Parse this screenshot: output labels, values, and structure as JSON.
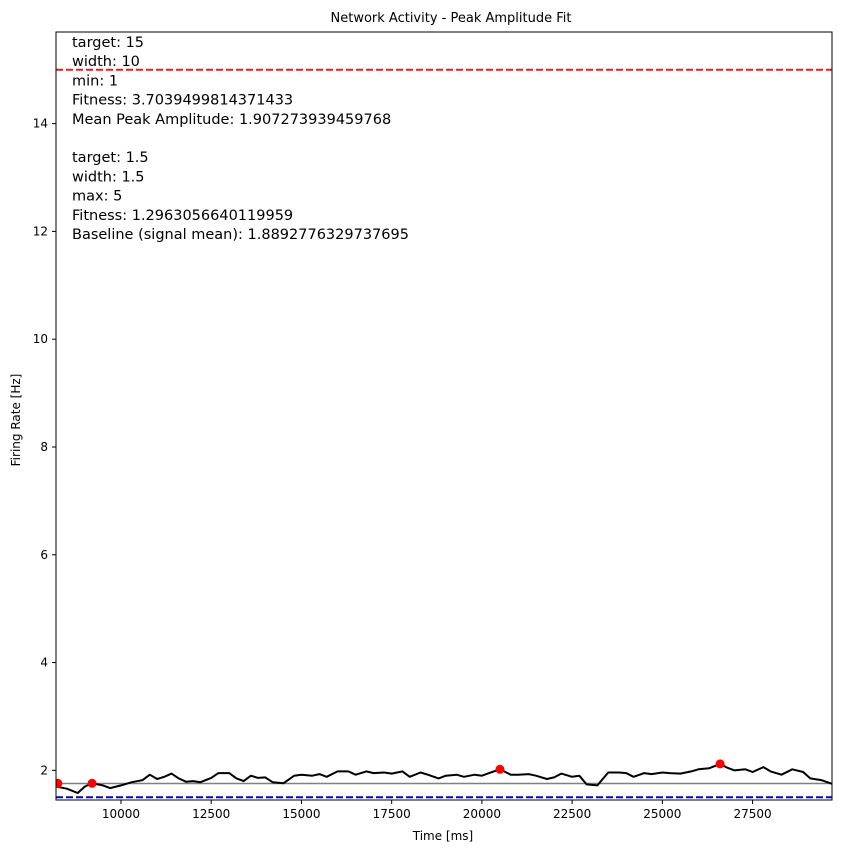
{
  "chart_data": {
    "type": "line",
    "title": "Network Activity - Peak Amplitude Fit",
    "xlabel": "Time [ms]",
    "ylabel": "Firing Rate [Hz]",
    "xlim": [
      8200,
      29700
    ],
    "ylim": [
      1.45,
      15.7
    ],
    "x_ticks": [
      10000,
      12500,
      15000,
      17500,
      20000,
      22500,
      25000,
      27500
    ],
    "y_ticks": [
      2,
      4,
      6,
      8,
      10,
      12,
      14
    ],
    "grid": false,
    "series": [
      {
        "color": "#000000",
        "points": [
          [
            8200,
            1.7
          ],
          [
            8500,
            1.66
          ],
          [
            8800,
            1.58
          ],
          [
            9000,
            1.7
          ],
          [
            9200,
            1.76
          ],
          [
            9500,
            1.72
          ],
          [
            9700,
            1.67
          ],
          [
            10000,
            1.72
          ],
          [
            10300,
            1.78
          ],
          [
            10600,
            1.82
          ],
          [
            10800,
            1.92
          ],
          [
            11000,
            1.84
          ],
          [
            11200,
            1.88
          ],
          [
            11400,
            1.94
          ],
          [
            11600,
            1.85
          ],
          [
            11800,
            1.79
          ],
          [
            12000,
            1.8
          ],
          [
            12200,
            1.78
          ],
          [
            12500,
            1.86
          ],
          [
            12700,
            1.95
          ],
          [
            13000,
            1.95
          ],
          [
            13200,
            1.85
          ],
          [
            13400,
            1.8
          ],
          [
            13600,
            1.9
          ],
          [
            13800,
            1.86
          ],
          [
            14000,
            1.87
          ],
          [
            14200,
            1.78
          ],
          [
            14500,
            1.76
          ],
          [
            14800,
            1.9
          ],
          [
            15000,
            1.92
          ],
          [
            15300,
            1.9
          ],
          [
            15500,
            1.93
          ],
          [
            15700,
            1.88
          ],
          [
            16000,
            1.98
          ],
          [
            16300,
            1.98
          ],
          [
            16500,
            1.92
          ],
          [
            16800,
            1.98
          ],
          [
            17000,
            1.95
          ],
          [
            17300,
            1.96
          ],
          [
            17500,
            1.94
          ],
          [
            17800,
            1.98
          ],
          [
            18000,
            1.88
          ],
          [
            18300,
            1.96
          ],
          [
            18500,
            1.92
          ],
          [
            18800,
            1.85
          ],
          [
            19000,
            1.9
          ],
          [
            19300,
            1.92
          ],
          [
            19500,
            1.88
          ],
          [
            19800,
            1.92
          ],
          [
            20000,
            1.9
          ],
          [
            20200,
            1.95
          ],
          [
            20500,
            2.02
          ],
          [
            20800,
            1.92
          ],
          [
            21000,
            1.92
          ],
          [
            21300,
            1.93
          ],
          [
            21500,
            1.9
          ],
          [
            21800,
            1.84
          ],
          [
            22000,
            1.87
          ],
          [
            22200,
            1.94
          ],
          [
            22500,
            1.88
          ],
          [
            22700,
            1.9
          ],
          [
            22900,
            1.74
          ],
          [
            23200,
            1.72
          ],
          [
            23500,
            1.96
          ],
          [
            23800,
            1.96
          ],
          [
            24000,
            1.95
          ],
          [
            24200,
            1.88
          ],
          [
            24500,
            1.95
          ],
          [
            24700,
            1.93
          ],
          [
            25000,
            1.96
          ],
          [
            25200,
            1.95
          ],
          [
            25500,
            1.94
          ],
          [
            25800,
            1.98
          ],
          [
            26000,
            2.02
          ],
          [
            26300,
            2.04
          ],
          [
            26600,
            2.12
          ],
          [
            26800,
            2.05
          ],
          [
            27000,
            2.0
          ],
          [
            27300,
            2.02
          ],
          [
            27500,
            1.97
          ],
          [
            27800,
            2.06
          ],
          [
            28000,
            1.98
          ],
          [
            28300,
            1.92
          ],
          [
            28600,
            2.02
          ],
          [
            28900,
            1.97
          ],
          [
            29100,
            1.85
          ],
          [
            29400,
            1.82
          ],
          [
            29700,
            1.75
          ]
        ]
      }
    ],
    "peaks": {
      "color": "#ff0000",
      "points": [
        [
          8250,
          1.76
        ],
        [
          9200,
          1.76
        ],
        [
          20500,
          2.02
        ],
        [
          26600,
          2.12
        ]
      ]
    },
    "hlines": [
      {
        "y": 15,
        "color": "#e02020",
        "style": "dashed"
      },
      {
        "y": 1.5,
        "color": "#0000cc",
        "style": "dashed"
      },
      {
        "y": 1.7559,
        "color": "#808080",
        "style": "solid"
      }
    ],
    "annotations": [
      "target: 15",
      "width: 10",
      "min: 1",
      "Fitness: 3.7039499814371433",
      "Mean Peak Amplitude: 1.907273939459768",
      "",
      "target: 1.5",
      "width: 1.5",
      "max: 5",
      "Fitness: 1.2963056640119959",
      "Baseline (signal mean): 1.8892776329737695"
    ]
  }
}
